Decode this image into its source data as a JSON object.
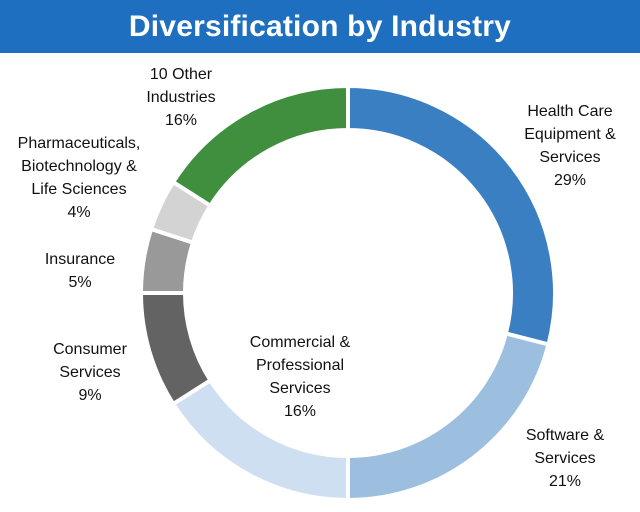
{
  "chart_data": {
    "type": "pie",
    "style": "donut",
    "title": "Diversification by Industry",
    "slices": [
      {
        "name_lines": [
          "Health Care",
          "Equipment &",
          "Services"
        ],
        "value": 29,
        "label": "29%",
        "color": "#3a7fc1"
      },
      {
        "name_lines": [
          "Software &",
          "Services"
        ],
        "value": 21,
        "label": "21%",
        "color": "#9cbfe0"
      },
      {
        "name_lines": [
          "Commercial &",
          "Professional",
          "Services"
        ],
        "value": 16,
        "label": "16%",
        "color": "#cddff0"
      },
      {
        "name_lines": [
          "Consumer",
          "Services"
        ],
        "value": 9,
        "label": "9%",
        "color": "#636363"
      },
      {
        "name_lines": [
          "Insurance"
        ],
        "value": 5,
        "label": "5%",
        "color": "#999999"
      },
      {
        "name_lines": [
          "Pharmaceuticals,",
          "Biotechnology &",
          "Life Sciences"
        ],
        "value": 4,
        "label": "4%",
        "color": "#d3d3d3"
      },
      {
        "name_lines": [
          "10 Other",
          "Industries"
        ],
        "value": 16,
        "label": "16%",
        "color": "#3f8f3f"
      }
    ]
  }
}
